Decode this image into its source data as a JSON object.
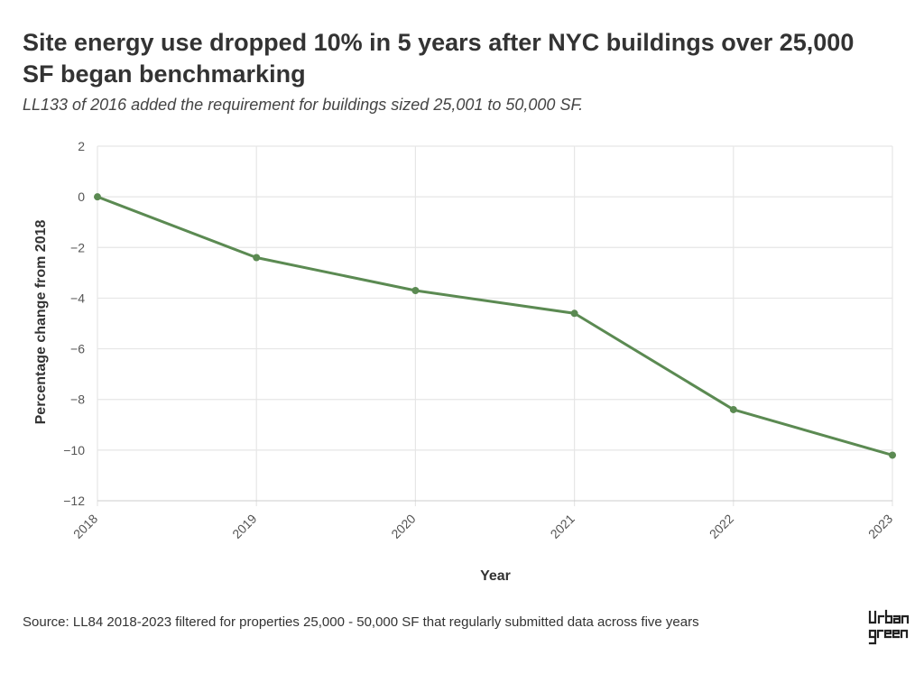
{
  "chart_data": {
    "type": "line",
    "title": "Site energy use dropped 10% in 5 years after NYC buildings over 25,000 SF began benchmarking",
    "subtitle": "LL133 of 2016 added the requirement for buildings sized 25,001 to 50,000 SF.",
    "xlabel": "Year",
    "ylabel": "Percentage change from 2018",
    "categories": [
      "2018",
      "2019",
      "2020",
      "2021",
      "2022",
      "2023"
    ],
    "series": [
      {
        "values": [
          0,
          -2.4,
          -3.7,
          -4.6,
          -8.4,
          -10.2
        ]
      }
    ],
    "ylim": [
      -12,
      2
    ],
    "yticks": [
      2,
      0,
      -2,
      -4,
      -6,
      -8,
      -10,
      -12
    ],
    "grid": true,
    "colors": {
      "line": "#5b8a52",
      "grid": "#e6e6e6"
    }
  },
  "source": "Source: LL84 2018-2023 filtered for properties 25,000 - 50,000 SF that regularly submitted data across five years",
  "logo": {
    "line1": "URBAN",
    "line2": "GREEN"
  }
}
